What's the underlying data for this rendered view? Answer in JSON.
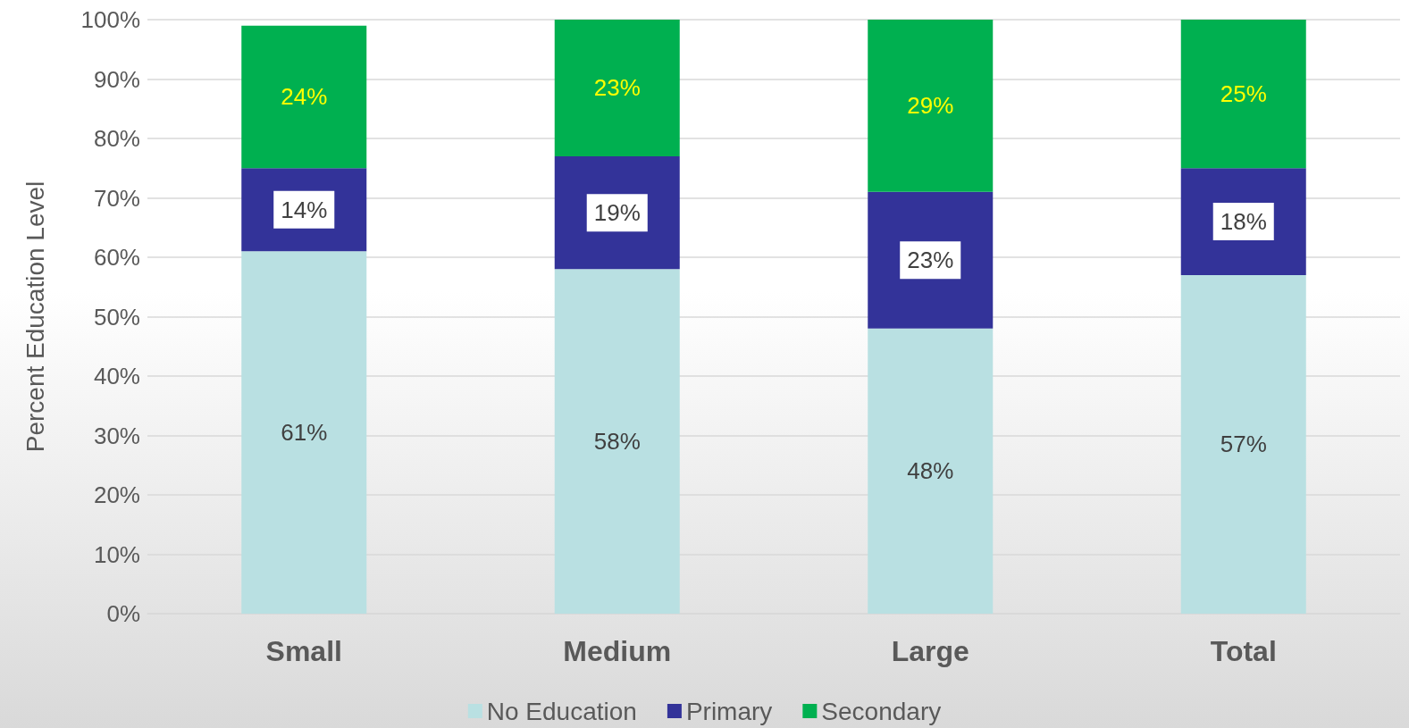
{
  "chart_data": {
    "type": "bar",
    "stacked": true,
    "ylabel": "Percent Education Level",
    "categories": [
      "Small",
      "Medium",
      "Large",
      "Total"
    ],
    "series": [
      {
        "name": "No Education",
        "color": "#b9e0e2",
        "values": [
          61,
          58,
          48,
          57
        ],
        "value_labels": [
          "61%",
          "58%",
          "48%",
          "57%"
        ]
      },
      {
        "name": "Primary",
        "color": "#333399",
        "values": [
          14,
          19,
          23,
          18
        ],
        "value_labels": [
          "14%",
          "19%",
          "23%",
          "18%"
        ]
      },
      {
        "name": "Secondary",
        "color": "#00b050",
        "values": [
          24,
          23,
          29,
          25
        ],
        "value_labels": [
          "24%",
          "23%",
          "29%",
          "25%"
        ]
      }
    ],
    "ylim": [
      0,
      100
    ],
    "yticks": [
      {
        "value": 0,
        "label": "0%"
      },
      {
        "value": 10,
        "label": "10%"
      },
      {
        "value": 20,
        "label": "20%"
      },
      {
        "value": 30,
        "label": "30%"
      },
      {
        "value": 40,
        "label": "40%"
      },
      {
        "value": 50,
        "label": "50%"
      },
      {
        "value": 60,
        "label": "60%"
      },
      {
        "value": 70,
        "label": "70%"
      },
      {
        "value": 80,
        "label": "80%"
      },
      {
        "value": 90,
        "label": "90%"
      },
      {
        "value": 100,
        "label": "100%"
      }
    ],
    "grid": "y",
    "legend": "bottom"
  }
}
